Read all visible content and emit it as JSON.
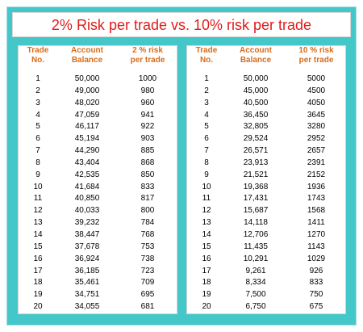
{
  "title": "2% Risk per trade vs. 10% risk per trade",
  "left_table": {
    "headers": [
      [
        "Trade",
        "No."
      ],
      [
        "Account",
        "Balance"
      ],
      [
        "2 % risk",
        "per trade"
      ]
    ],
    "rows": [
      [
        "1",
        "50,000",
        "1000"
      ],
      [
        "2",
        "49,000",
        "980"
      ],
      [
        "3",
        "48,020",
        "960"
      ],
      [
        "4",
        "47,059",
        "941"
      ],
      [
        "5",
        "46,117",
        "922"
      ],
      [
        "6",
        "45,194",
        "903"
      ],
      [
        "7",
        "44,290",
        "885"
      ],
      [
        "8",
        "43,404",
        "868"
      ],
      [
        "9",
        "42,535",
        "850"
      ],
      [
        "10",
        "41,684",
        "833"
      ],
      [
        "11",
        "40,850",
        "817"
      ],
      [
        "12",
        "40,033",
        "800"
      ],
      [
        "13",
        "39,232",
        "784"
      ],
      [
        "14",
        "38,447",
        "768"
      ],
      [
        "15",
        "37,678",
        "753"
      ],
      [
        "16",
        "36,924",
        "738"
      ],
      [
        "17",
        "36,185",
        "723"
      ],
      [
        "18",
        "35,461",
        "709"
      ],
      [
        "19",
        "34,751",
        "695"
      ],
      [
        "20",
        "34,055",
        "681"
      ]
    ]
  },
  "right_table": {
    "headers": [
      [
        "Trade",
        "No."
      ],
      [
        "Account",
        "Balance"
      ],
      [
        "10 % risk",
        "per trade"
      ]
    ],
    "rows": [
      [
        "1",
        "50,000",
        "5000"
      ],
      [
        "2",
        "45,000",
        "4500"
      ],
      [
        "3",
        "40,500",
        "4050"
      ],
      [
        "4",
        "36,450",
        "3645"
      ],
      [
        "5",
        "32,805",
        "3280"
      ],
      [
        "6",
        "29,524",
        "2952"
      ],
      [
        "7",
        "26,571",
        "2657"
      ],
      [
        "8",
        "23,913",
        "2391"
      ],
      [
        "9",
        "21,521",
        "2152"
      ],
      [
        "10",
        "19,368",
        "1936"
      ],
      [
        "11",
        "17,431",
        "1743"
      ],
      [
        "12",
        "15,687",
        "1568"
      ],
      [
        "13",
        "14,118",
        "1411"
      ],
      [
        "14",
        "12,706",
        "1270"
      ],
      [
        "15",
        "11,435",
        "1143"
      ],
      [
        "16",
        "10,291",
        "1029"
      ],
      [
        "17",
        "9,261",
        "926"
      ],
      [
        "18",
        "8,334",
        "833"
      ],
      [
        "19",
        "7,500",
        "750"
      ],
      [
        "20",
        "6,750",
        "675"
      ]
    ]
  }
}
